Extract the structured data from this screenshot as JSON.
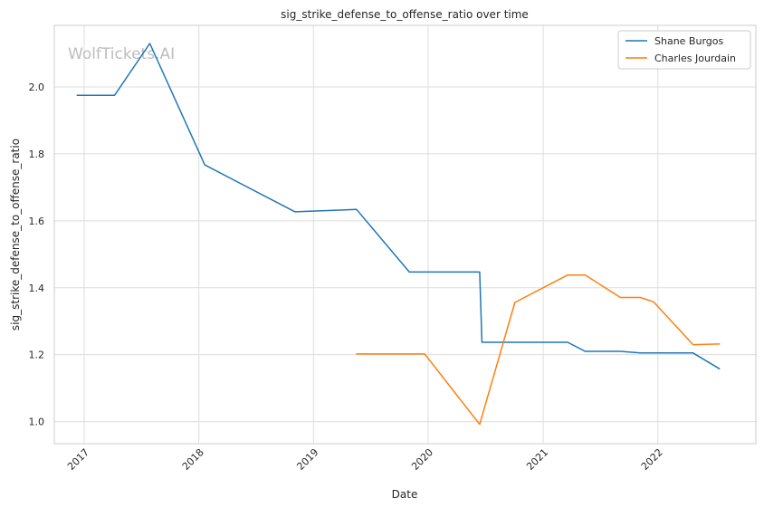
{
  "watermark": "WolfTickets.AI",
  "chart_data": {
    "type": "line",
    "title": "sig_strike_defense_to_offense_ratio over time",
    "xlabel": "Date",
    "ylabel": "sig_strike_defense_to_offense_ratio",
    "x_ticks": [
      "2017",
      "2018",
      "2019",
      "2020",
      "2021",
      "2022"
    ],
    "y_ticks": [
      "1.0",
      "1.2",
      "1.4",
      "1.6",
      "1.8",
      "2.0"
    ],
    "xlim": [
      "2016-09-28",
      "2022-11-09"
    ],
    "ylim": [
      0.934,
      2.184
    ],
    "grid": true,
    "legend_position": "top-right",
    "series": [
      {
        "name": "Shane Burgos",
        "color": "#1f77b4",
        "points": [
          {
            "x": "2016-12-10",
            "y": 1.975
          },
          {
            "x": "2017-04-08",
            "y": 1.975
          },
          {
            "x": "2017-07-29",
            "y": 2.13
          },
          {
            "x": "2018-01-20",
            "y": 1.767
          },
          {
            "x": "2018-11-03",
            "y": 1.627
          },
          {
            "x": "2019-05-18",
            "y": 1.634
          },
          {
            "x": "2019-11-02",
            "y": 1.447
          },
          {
            "x": "2020-06-13",
            "y": 1.447
          },
          {
            "x": "2020-06-20",
            "y": 1.237
          },
          {
            "x": "2021-03-20",
            "y": 1.237
          },
          {
            "x": "2021-05-15",
            "y": 1.21
          },
          {
            "x": "2021-09-04",
            "y": 1.21
          },
          {
            "x": "2021-11-06",
            "y": 1.205
          },
          {
            "x": "2022-04-23",
            "y": 1.205
          },
          {
            "x": "2022-07-16",
            "y": 1.158
          }
        ]
      },
      {
        "name": "Charles Jourdain",
        "color": "#ff7f0e",
        "points": [
          {
            "x": "2019-05-18",
            "y": 1.202
          },
          {
            "x": "2019-12-21",
            "y": 1.202
          },
          {
            "x": "2020-06-13",
            "y": 0.992
          },
          {
            "x": "2020-10-03",
            "y": 1.356
          },
          {
            "x": "2021-03-20",
            "y": 1.438
          },
          {
            "x": "2021-05-15",
            "y": 1.438
          },
          {
            "x": "2021-09-04",
            "y": 1.371
          },
          {
            "x": "2021-11-06",
            "y": 1.371
          },
          {
            "x": "2021-12-18",
            "y": 1.358
          },
          {
            "x": "2022-04-23",
            "y": 1.23
          },
          {
            "x": "2022-07-16",
            "y": 1.232
          }
        ]
      }
    ]
  }
}
